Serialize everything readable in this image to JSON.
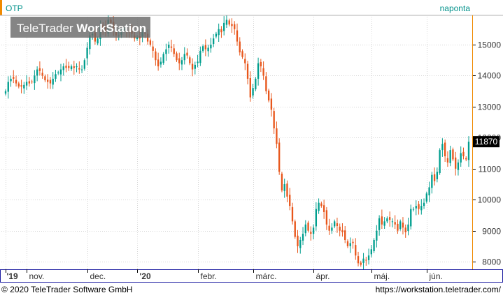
{
  "chart_data": {
    "type": "candlestick",
    "symbol": "OTP",
    "period": "naponta",
    "watermark": "TeleTrader WorkStation",
    "watermark_parts": [
      "TeleTrader ",
      "WorkStation"
    ],
    "copyright": "© 2020 TeleTrader Software GmbH",
    "url": "https://workstation.teletrader.com/",
    "last_price": "11870",
    "y_ticks": [
      8000,
      9000,
      10000,
      11000,
      12000,
      13000,
      14000,
      15000
    ],
    "y_tick_labels": [
      "8000",
      "9000",
      "10000",
      "11000",
      "12000",
      "13000",
      "14000",
      "15000"
    ],
    "ylim": [
      7800,
      15900
    ],
    "x_labels": [
      "'19",
      "nov.",
      "dec.",
      "'20",
      "febr.",
      "márc.",
      "ápr.",
      "máj.",
      "jún."
    ],
    "x_label_index": [
      0,
      8,
      31,
      50,
      73,
      94,
      117,
      139,
      160
    ],
    "grid": true,
    "colors": {
      "up": "#009e8e",
      "down": "#e8561b",
      "grid": "#d6d6d6",
      "axis_border": "#1a1aa0",
      "accent": "#f08a00",
      "header_text": "#00918a"
    },
    "close": [
      13500,
      13800,
      13900,
      13900,
      13750,
      13650,
      13650,
      13700,
      13800,
      13750,
      13800,
      14000,
      14200,
      14150,
      14000,
      13850,
      13800,
      13750,
      13900,
      14050,
      14100,
      14200,
      14300,
      14250,
      14250,
      14300,
      14250,
      14300,
      14200,
      14200,
      14500,
      14900,
      15300,
      15350,
      15100,
      15200,
      15600,
      15500,
      15400,
      15800,
      15700,
      15500,
      15300,
      15300,
      15400,
      15500,
      15450,
      15400,
      15350,
      15200,
      15250,
      15200,
      15400,
      15350,
      15100,
      15000,
      14800,
      14500,
      14300,
      14450,
      14700,
      14850,
      15000,
      14900,
      14700,
      14500,
      14400,
      14500,
      14700,
      14650,
      14400,
      14200,
      14350,
      14450,
      14800,
      14950,
      14850,
      14900,
      15000,
      15200,
      15350,
      15500,
      15400,
      15700,
      15800,
      15650,
      15600,
      15500,
      15100,
      14750,
      14600,
      14400,
      13900,
      13300,
      13600,
      13900,
      14400,
      14300,
      14000,
      13500,
      13200,
      12900,
      12300,
      11800,
      10900,
      10300,
      10500,
      10100,
      9800,
      9300,
      8800,
      8500,
      8700,
      8900,
      9200,
      9000,
      8900,
      9100,
      9700,
      9900,
      9800,
      9600,
      9200,
      9000,
      9100,
      9300,
      9150,
      9000,
      8950,
      8700,
      8500,
      8600,
      8600,
      8200,
      7950,
      7900,
      8100,
      8050,
      8200,
      8400,
      8700,
      9000,
      9400,
      9200,
      9300,
      9400,
      9350,
      9300,
      9200,
      9000,
      9300,
      9100,
      8950,
      9200,
      9700,
      9700,
      9800,
      9700,
      9800,
      9900,
      10200,
      10400,
      10800,
      10600,
      10900,
      11600,
      11800,
      11400,
      11200,
      11600,
      11300,
      11000,
      11200,
      11500,
      11400,
      11300,
      11870
    ]
  }
}
